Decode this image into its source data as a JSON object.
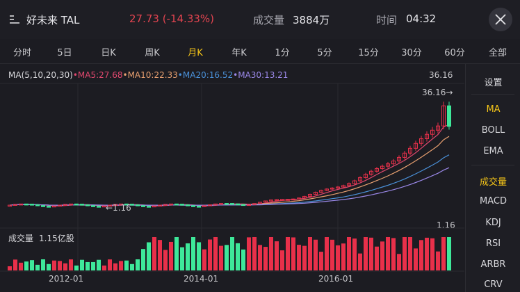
{
  "header": {
    "stock_name": "好未来 TAL",
    "price_change": "27.73 (-14.33%)",
    "volume_label": "成交量",
    "volume_value": "3884万",
    "time_label": "时间",
    "time_value": "04:32",
    "menu_icon": "menu-lines-icon",
    "close_icon": "close-icon"
  },
  "tabs": [
    {
      "label": "分时",
      "active": false
    },
    {
      "label": "5日",
      "active": false
    },
    {
      "label": "日K",
      "active": false
    },
    {
      "label": "周K",
      "active": false
    },
    {
      "label": "月K",
      "active": true
    },
    {
      "label": "年K",
      "active": false
    },
    {
      "label": "1分",
      "active": false
    },
    {
      "label": "5分",
      "active": false
    },
    {
      "label": "15分",
      "active": false
    },
    {
      "label": "30分",
      "active": false
    },
    {
      "label": "60分",
      "active": false
    },
    {
      "label": "全部",
      "active": false
    }
  ],
  "ma_legend": {
    "prefix": "MA(5,10,20,30)",
    "ma5": "•MA5:27.68",
    "ma10": "•MA10:22.33",
    "ma20": "•MA20:16.52",
    "ma30": "•MA30:13.21"
  },
  "colors": {
    "up": "#e8304a",
    "down": "#3ee89a",
    "ma5": "#e0486e",
    "ma10": "#e8a070",
    "ma20": "#4a90d8",
    "ma30": "#9a88e8",
    "accent": "#f5c518"
  },
  "chart_labels": {
    "price_max": "36.16",
    "high_marker": "36.16→",
    "low_marker": "←1.16",
    "price_min": "1.16",
    "volume_title": "成交量",
    "volume_max": "1.15亿股",
    "x_ticks": [
      "2012-01",
      "2014-01",
      "2016-01"
    ]
  },
  "side_panel": {
    "settings": "设置",
    "items": [
      {
        "label": "MA",
        "active": true
      },
      {
        "label": "BOLL",
        "active": false
      },
      {
        "label": "EMA",
        "active": false
      },
      {
        "label": "成交量",
        "active": true
      },
      {
        "label": "MACD",
        "active": false
      },
      {
        "label": "KDJ",
        "active": false
      },
      {
        "label": "RSI",
        "active": false
      },
      {
        "label": "ARBR",
        "active": false
      },
      {
        "label": "CRV",
        "active": false
      }
    ]
  },
  "chart_data": {
    "type": "candlestick",
    "period": "monthly",
    "y_range": [
      1.16,
      36.16
    ],
    "volume_max": "1.15亿股",
    "x_ticks": [
      "2012-01",
      "2014-01",
      "2016-01"
    ],
    "candles_summary": "Monthly K-line rising from ~1.16 to 36.16 peak, last month down -14.33% closing 27.73",
    "ma_last": {
      "MA5": 27.68,
      "MA10": 22.33,
      "MA20": 16.52,
      "MA30": 13.21
    }
  }
}
